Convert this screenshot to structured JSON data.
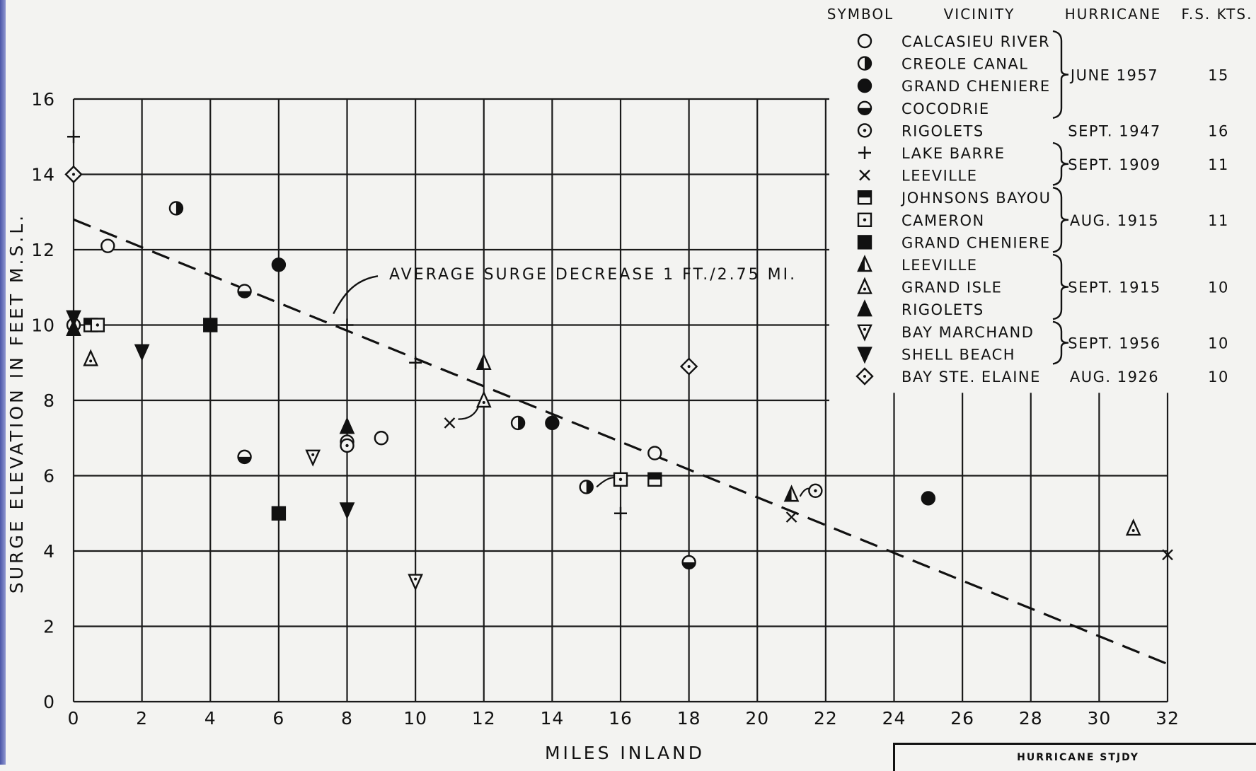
{
  "chart_data": {
    "type": "scatter",
    "xlabel": "MILES INLAND",
    "ylabel": "SURGE ELEVATION IN FEET M.S.L.",
    "xlim": [
      0,
      32
    ],
    "ylim": [
      0,
      16
    ],
    "x_ticks": [
      "0",
      "2",
      "4",
      "6",
      "8",
      "10",
      "12",
      "14",
      "16",
      "18",
      "20",
      "22",
      "24",
      "26",
      "28",
      "30",
      "32"
    ],
    "y_ticks": [
      "0",
      "2",
      "4",
      "6",
      "8",
      "10",
      "12",
      "14",
      "16"
    ],
    "grid": true,
    "legend_position": "top-right",
    "legend_headers": {
      "symbol": "SYMBOL",
      "vicinity": "VICINITY",
      "hurricane": "HURRICANE",
      "speed": "F.S. KTS."
    },
    "trend_line": {
      "label": "AVERAGE SURGE DECREASE 1 FT./2.75 MI.",
      "points": [
        [
          0,
          12.8
        ],
        [
          32,
          1.0
        ]
      ],
      "style": "dashed"
    },
    "series": [
      {
        "name": "CALCASIEU RIVER",
        "marker": "circle-open",
        "points": [
          [
            1,
            12.1
          ],
          [
            8,
            6.9
          ],
          [
            9,
            7.0
          ],
          [
            17,
            6.6
          ],
          [
            0,
            10.0
          ]
        ]
      },
      {
        "name": "CREOLE CANAL",
        "marker": "circle-half-right",
        "points": [
          [
            3,
            13.1
          ],
          [
            13,
            7.4
          ],
          [
            15,
            5.7
          ]
        ]
      },
      {
        "name": "GRAND CHENIERE",
        "marker": "circle-filled",
        "points": [
          [
            6,
            11.6
          ],
          [
            14,
            7.4
          ],
          [
            25,
            5.4
          ]
        ]
      },
      {
        "name": "COCODRIE",
        "marker": "circle-half-bottom",
        "points": [
          [
            5,
            10.9
          ],
          [
            5,
            6.5
          ],
          [
            18,
            3.7
          ]
        ]
      },
      {
        "name": "RIGOLETS",
        "marker": "circle-dot",
        "points": [
          [
            8,
            6.8
          ],
          [
            21.7,
            5.6
          ]
        ]
      },
      {
        "name": "LAKE BARRE",
        "marker": "plus",
        "points": [
          [
            0,
            15.0
          ],
          [
            8,
            10.0
          ],
          [
            16,
            5.0
          ],
          [
            10,
            9.0
          ]
        ]
      },
      {
        "name": "LEEVILLE",
        "marker": "cross",
        "points": [
          [
            11,
            7.4
          ],
          [
            21,
            4.9
          ],
          [
            32,
            3.9
          ]
        ]
      },
      {
        "name": "JOHNSONS BAYOU",
        "marker": "square-half-top",
        "points": [
          [
            0.5,
            10.0
          ],
          [
            17,
            5.9
          ]
        ]
      },
      {
        "name": "CAMERON",
        "marker": "square-dot",
        "points": [
          [
            0.7,
            10.0
          ],
          [
            16,
            5.9
          ]
        ]
      },
      {
        "name": "GRAND CHENIERE",
        "marker": "square-filled",
        "points": [
          [
            4,
            10.0
          ],
          [
            6,
            5.0
          ]
        ]
      },
      {
        "name": "LEEVILLE",
        "marker": "triangle-half",
        "points": [
          [
            12,
            9.0
          ],
          [
            21,
            5.5
          ]
        ]
      },
      {
        "name": "GRAND ISLE",
        "marker": "triangle-dot",
        "points": [
          [
            0.5,
            9.1
          ],
          [
            12,
            8.0
          ],
          [
            31,
            4.6
          ]
        ]
      },
      {
        "name": "RIGOLETS",
        "marker": "triangle-filled",
        "points": [
          [
            8,
            7.3
          ],
          [
            0,
            9.9
          ]
        ]
      },
      {
        "name": "BAY MARCHAND",
        "marker": "triangle-down-dot",
        "points": [
          [
            7,
            6.5
          ],
          [
            10,
            3.2
          ]
        ]
      },
      {
        "name": "SHELL BEACH",
        "marker": "triangle-down-filled",
        "points": [
          [
            2,
            9.3
          ],
          [
            8,
            5.1
          ],
          [
            0,
            10.2
          ]
        ]
      },
      {
        "name": "BAY STE. ELAINE",
        "marker": "diamond-dot",
        "points": [
          [
            0,
            14.0
          ],
          [
            18,
            8.9
          ]
        ]
      }
    ],
    "legend_groups": [
      {
        "members": [
          0,
          1,
          2,
          3
        ],
        "hurricane": "JUNE 1957",
        "speed": "15"
      },
      {
        "members": [
          4
        ],
        "hurricane": "SEPT. 1947",
        "speed": "16"
      },
      {
        "members": [
          5,
          6
        ],
        "hurricane": "SEPT. 1909",
        "speed": "11"
      },
      {
        "members": [
          7,
          8,
          9
        ],
        "hurricane": "AUG. 1915",
        "speed": "11"
      },
      {
        "members": [
          10,
          11,
          12
        ],
        "hurricane": "SEPT. 1915",
        "speed": "10"
      },
      {
        "members": [
          13,
          14
        ],
        "hurricane": "SEPT. 1956",
        "speed": "10"
      },
      {
        "members": [
          15
        ],
        "hurricane": "AUG. 1926",
        "speed": "10"
      }
    ]
  },
  "footer": {
    "box_label": "HURRICANE STJDY"
  }
}
